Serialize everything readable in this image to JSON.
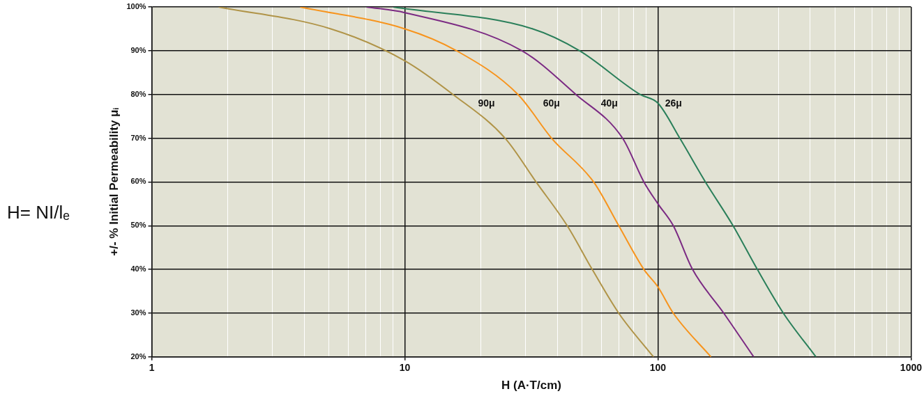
{
  "chart_data": {
    "type": "line",
    "xlabel": "H (A·T/cm)",
    "ylabel": "+/- % Initial Permeability μᵢ",
    "log": "x",
    "grid": true,
    "legend": false,
    "marker": "none",
    "line_style": "solid",
    "xlim": [
      1,
      1000
    ],
    "ylim": [
      20,
      100
    ],
    "xticks": [
      1,
      {
        "value": 2,
        "label": null
      },
      {
        "value": 3,
        "label": null
      },
      {
        "value": 4,
        "label": null
      },
      {
        "value": 5,
        "label": null
      },
      {
        "value": 6,
        "label": null
      },
      {
        "value": 7,
        "label": null
      },
      {
        "value": 8,
        "label": null
      },
      {
        "value": 9,
        "label": null
      },
      10,
      {
        "value": 20,
        "label": null
      },
      {
        "value": 30,
        "label": null
      },
      {
        "value": 40,
        "label": null
      },
      {
        "value": 50,
        "label": null
      },
      {
        "value": 60,
        "label": null
      },
      {
        "value": 70,
        "label": null
      },
      {
        "value": 80,
        "label": null
      },
      {
        "value": 90,
        "label": null
      },
      100,
      {
        "value": 200,
        "label": null
      },
      {
        "value": 300,
        "label": null
      },
      {
        "value": 400,
        "label": null
      },
      {
        "value": 500,
        "label": null
      },
      {
        "value": 600,
        "label": null
      },
      {
        "value": 700,
        "label": null
      },
      {
        "value": 800,
        "label": null
      },
      {
        "value": 900,
        "label": null
      },
      1000
    ],
    "yticks": [
      {
        "value": 20,
        "label": "20%"
      },
      {
        "value": 30,
        "label": "30%"
      },
      {
        "value": 40,
        "label": "40%"
      },
      {
        "value": 50,
        "label": "50%"
      },
      {
        "value": 60,
        "label": "60%"
      },
      {
        "value": 70,
        "label": "70%"
      },
      {
        "value": 80,
        "label": "80%"
      },
      {
        "value": 90,
        "label": "90%"
      },
      {
        "value": 100,
        "label": "100%"
      }
    ],
    "series": [
      {
        "name": "90μ",
        "color": "#b09448",
        "x": [
          1.84,
          5.1,
          10,
          15.5,
          24.9,
          33,
          43.8,
          55,
          70,
          96
        ],
        "values": [
          100,
          95,
          87.7,
          80,
          70,
          60,
          50,
          40,
          30,
          20
        ]
      },
      {
        "name": "60μ",
        "color": "#f7941d",
        "x": [
          3.86,
          10,
          16,
          28,
          38,
          55.7,
          70,
          88,
          100,
          115,
          162
        ],
        "values": [
          100,
          95,
          90,
          80,
          70,
          60,
          50,
          40,
          36,
          30,
          20
        ]
      },
      {
        "name": "40μ",
        "color": "#7b2a83",
        "x": [
          7.06,
          10,
          29,
          47.4,
          72.5,
          88,
          100,
          115,
          137,
          182,
          239
        ],
        "values": [
          100,
          98.7,
          90,
          80,
          70,
          60,
          55,
          50,
          40,
          30,
          20
        ]
      },
      {
        "name": "26μ",
        "color": "#2a7f5a",
        "x": [
          9,
          32,
          49,
          85,
          100,
          122,
          154,
          198,
          247,
          313,
          421
        ],
        "values": [
          100,
          95,
          90,
          80,
          78,
          70,
          60,
          50,
          40,
          30,
          20
        ]
      }
    ],
    "annotations": [
      "H= NI/lₑ"
    ]
  }
}
